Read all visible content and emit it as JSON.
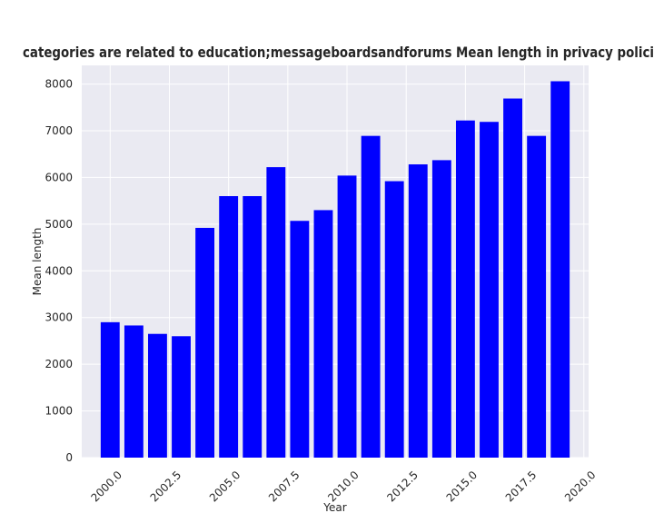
{
  "chart_data": {
    "type": "bar",
    "title": "categories are related to education;messageboardsandforums Mean length in privacy policies",
    "xlabel": "Year",
    "ylabel": "Mean length",
    "x": [
      2000,
      2001,
      2002,
      2003,
      2004,
      2005,
      2006,
      2007,
      2008,
      2009,
      2010,
      2011,
      2012,
      2013,
      2014,
      2015,
      2016,
      2017,
      2018,
      2019
    ],
    "values": [
      2900,
      2830,
      2650,
      2600,
      4920,
      5600,
      5600,
      6220,
      5070,
      5300,
      6040,
      6890,
      5920,
      6280,
      6370,
      7220,
      7190,
      7690,
      6890,
      8060
    ],
    "xlim": [
      1998.8,
      2020.2
    ],
    "ylim": [
      0,
      8400
    ],
    "xticks": [
      2000.0,
      2002.5,
      2005.0,
      2007.5,
      2010.0,
      2012.5,
      2015.0,
      2017.5,
      2020.0
    ],
    "xtick_labels": [
      "2000.0",
      "2002.5",
      "2005.0",
      "2007.5",
      "2010.0",
      "2012.5",
      "2015.0",
      "2017.5",
      "2020.0"
    ],
    "yticks": [
      0,
      1000,
      2000,
      3000,
      4000,
      5000,
      6000,
      7000,
      8000
    ],
    "ytick_labels": [
      "0",
      "1000",
      "2000",
      "3000",
      "4000",
      "5000",
      "6000",
      "7000",
      "8000"
    ],
    "bar_color": "#0000ff",
    "background_color": "#eaeaf2",
    "grid": true
  }
}
